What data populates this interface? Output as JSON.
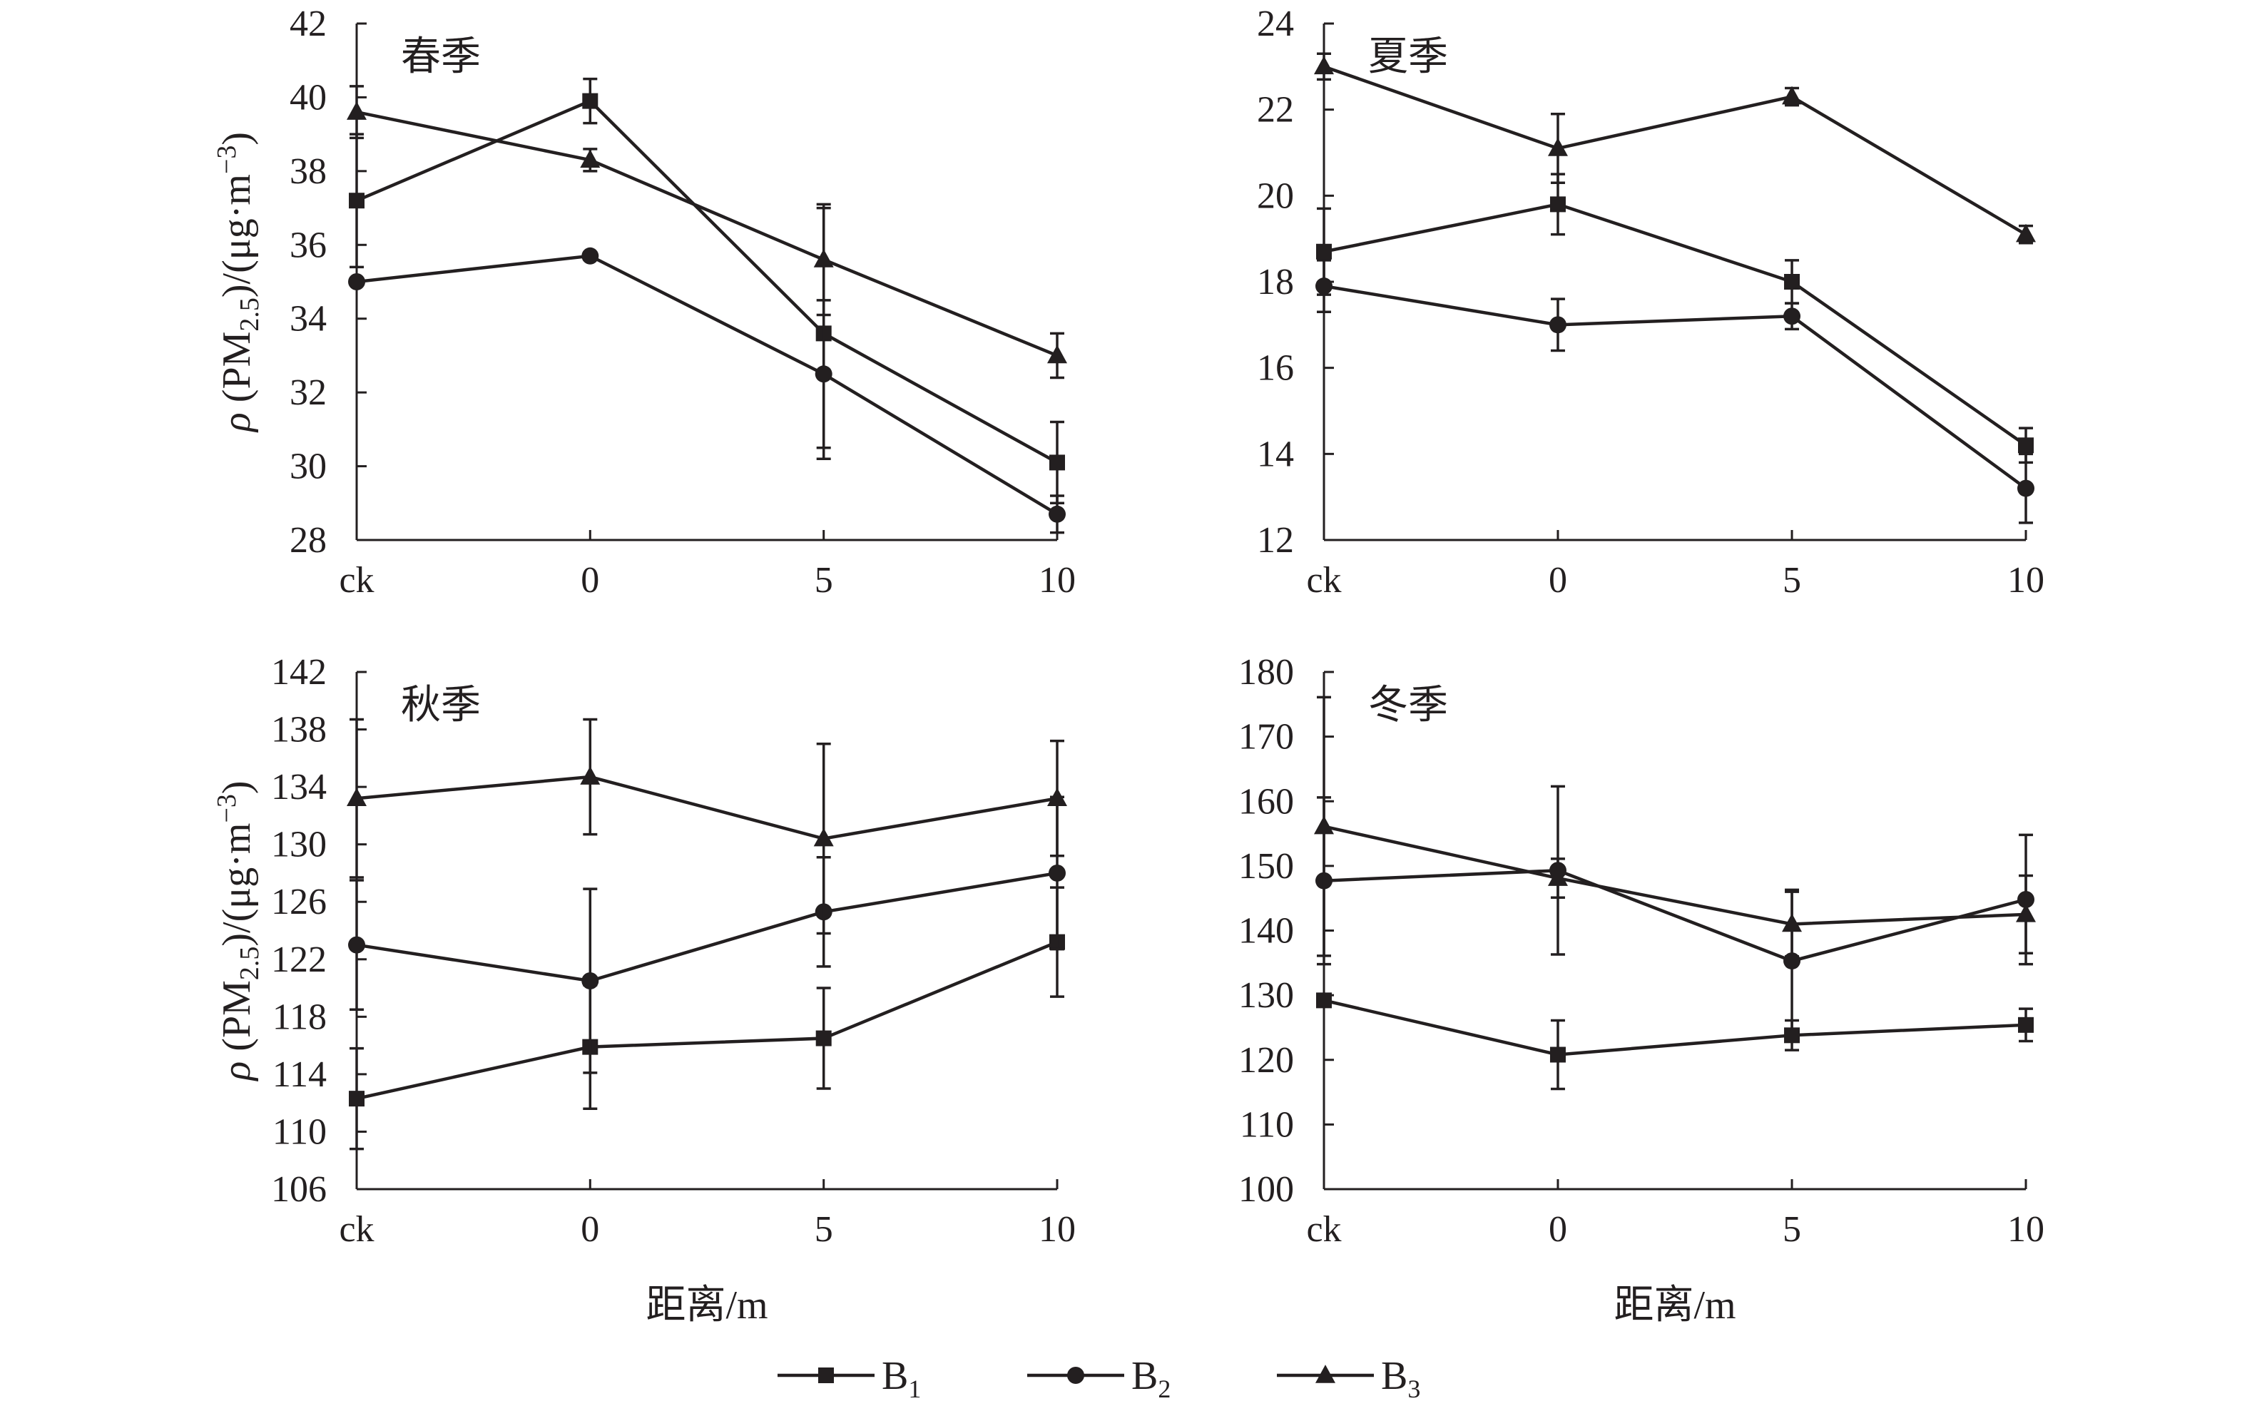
{
  "colors": {
    "ink": "#231f20",
    "background": "#ffffff"
  },
  "legend": {
    "items": [
      {
        "label": "B",
        "sub": "1",
        "marker": "square"
      },
      {
        "label": "B",
        "sub": "2",
        "marker": "circle"
      },
      {
        "label": "B",
        "sub": "3",
        "marker": "triangle"
      }
    ]
  },
  "shared": {
    "ylabel": {
      "rho": "ρ",
      "pre": " (PM",
      "sub": "2.5",
      "mid": ")/(μg·m",
      "sup": "−3",
      "post": ")"
    },
    "xlabel": "距离/m"
  },
  "chart_data": [
    {
      "type": "line",
      "title": "春季",
      "categories": [
        "ck",
        "0",
        "5",
        "10"
      ],
      "ylim": [
        28,
        42
      ],
      "yticks": [
        28,
        30,
        32,
        34,
        36,
        38,
        40,
        42
      ],
      "show_ylabel": true,
      "show_xlabel": false,
      "series": [
        {
          "name": "B1",
          "marker": "square",
          "values": [
            37.2,
            39.9,
            33.6,
            30.1
          ],
          "errors": [
            1.8,
            0.6,
            3.4,
            1.1
          ]
        },
        {
          "name": "B2",
          "marker": "circle",
          "values": [
            35.0,
            35.7,
            32.5,
            28.7
          ],
          "errors": [
            0.0,
            0.1,
            2.0,
            0.5
          ]
        },
        {
          "name": "B3",
          "marker": "triangle",
          "values": [
            39.6,
            38.3,
            35.6,
            33.0
          ],
          "errors": [
            0.7,
            0.3,
            1.5,
            0.6
          ]
        }
      ]
    },
    {
      "type": "line",
      "title": "夏季",
      "categories": [
        "ck",
        "0",
        "5",
        "10"
      ],
      "ylim": [
        12,
        24
      ],
      "yticks": [
        12,
        14,
        16,
        18,
        20,
        22,
        24
      ],
      "show_ylabel": false,
      "show_xlabel": false,
      "series": [
        {
          "name": "B1",
          "marker": "square",
          "values": [
            18.7,
            19.8,
            18.0,
            14.2
          ],
          "errors": [
            1.0,
            0.7,
            0.5,
            0.4
          ]
        },
        {
          "name": "B2",
          "marker": "circle",
          "values": [
            17.9,
            17.0,
            17.2,
            13.2
          ],
          "errors": [
            0.6,
            0.6,
            0.3,
            0.8
          ]
        },
        {
          "name": "B3",
          "marker": "triangle",
          "values": [
            23.0,
            21.1,
            22.3,
            19.1
          ],
          "errors": [
            0.3,
            0.8,
            0.2,
            0.2
          ]
        }
      ]
    },
    {
      "type": "line",
      "title": "秋季",
      "categories": [
        "ck",
        "0",
        "5",
        "10"
      ],
      "ylim": [
        106,
        142
      ],
      "yticks": [
        106,
        110,
        114,
        118,
        122,
        126,
        130,
        134,
        138,
        142
      ],
      "show_ylabel": true,
      "show_xlabel": true,
      "series": [
        {
          "name": "B1",
          "marker": "square",
          "values": [
            112.3,
            115.9,
            116.5,
            123.2
          ],
          "errors": [
            3.5,
            4.3,
            3.5,
            3.8
          ]
        },
        {
          "name": "B2",
          "marker": "circle",
          "values": [
            123.0,
            120.5,
            125.3,
            128.0
          ],
          "errors": [
            4.5,
            6.4,
            3.8,
            5.3
          ]
        },
        {
          "name": "B3",
          "marker": "triangle",
          "values": [
            133.2,
            134.7,
            130.4,
            133.2
          ],
          "errors": [
            5.5,
            4.0,
            6.6,
            4.0
          ]
        }
      ]
    },
    {
      "type": "line",
      "title": "冬季",
      "categories": [
        "ck",
        "0",
        "5",
        "10"
      ],
      "ylim": [
        100,
        180
      ],
      "yticks": [
        100,
        110,
        120,
        130,
        140,
        150,
        160,
        170,
        180
      ],
      "show_ylabel": false,
      "show_xlabel": true,
      "series": [
        {
          "name": "B1",
          "marker": "square",
          "values": [
            129.2,
            120.8,
            123.8,
            125.4
          ],
          "errors": [
            0.0,
            5.3,
            2.3,
            2.5
          ]
        },
        {
          "name": "B2",
          "marker": "circle",
          "values": [
            147.7,
            149.3,
            135.3,
            144.8
          ],
          "errors": [
            12.9,
            13.0,
            11.0,
            10.0
          ]
        },
        {
          "name": "B3",
          "marker": "triangle",
          "values": [
            156.1,
            148.1,
            141.0,
            142.5
          ],
          "errors": [
            20.0,
            3.0,
            5.0,
            6.0
          ]
        }
      ]
    }
  ]
}
